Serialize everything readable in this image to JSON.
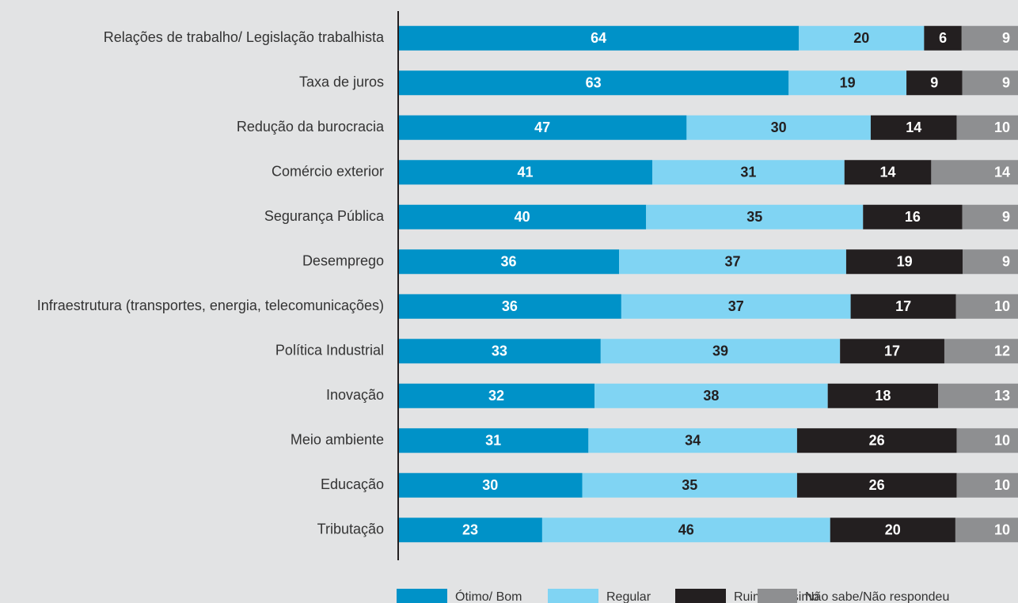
{
  "chart_data": {
    "type": "stacked_bar_horizontal",
    "categories": [
      "Relações de trabalho/ Legislação trabalhista",
      "Taxa de juros",
      "Redução da burocracia",
      "Comércio exterior",
      "Segurança Pública",
      "Desemprego",
      "Infraestrutura (transportes, energia, telecomunicações)",
      "Política Industrial",
      "Inovação",
      "Meio ambiente",
      "Educação",
      "Tributação"
    ],
    "series": [
      {
        "name": "Ótimo/ Bom",
        "color": "#0092c8",
        "values": [
          64,
          63,
          47,
          41,
          40,
          36,
          36,
          33,
          32,
          31,
          30,
          23
        ]
      },
      {
        "name": "Regular",
        "color": "#80d4f3",
        "values": [
          20,
          19,
          30,
          31,
          35,
          37,
          37,
          39,
          38,
          34,
          35,
          46
        ]
      },
      {
        "name": "Ruim/ Péssimo",
        "color": "#231f20",
        "values": [
          6,
          9,
          14,
          14,
          16,
          19,
          17,
          17,
          18,
          26,
          26,
          20
        ]
      },
      {
        "name": "Não sabe/Não respondeu",
        "color": "#8e8f91",
        "values": [
          9,
          9,
          10,
          14,
          9,
          9,
          10,
          12,
          13,
          10,
          10,
          10
        ]
      }
    ]
  }
}
